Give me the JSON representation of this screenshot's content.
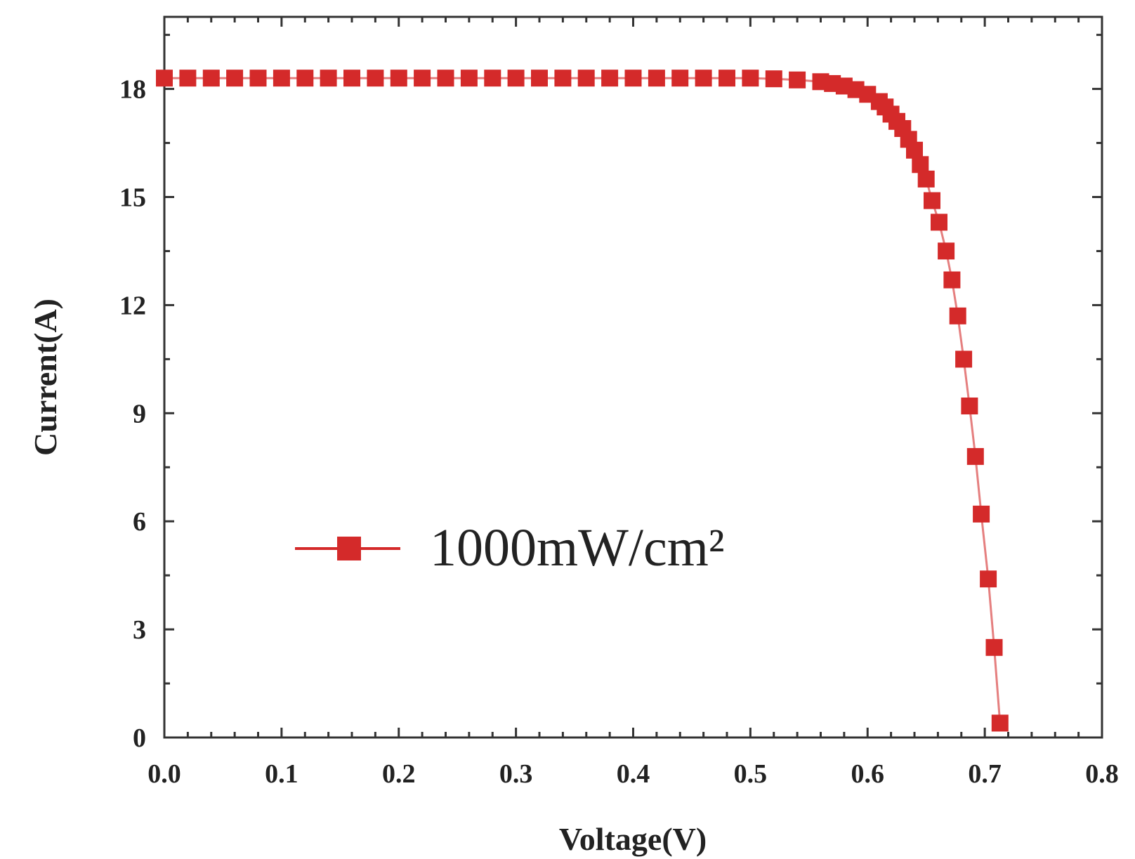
{
  "chart_data": {
    "type": "scatter",
    "title": "",
    "xlabel": "Voltage(V)",
    "ylabel": "Current(A)",
    "xlim": [
      0.0,
      0.8
    ],
    "ylim": [
      0,
      20
    ],
    "x_ticks": [
      0.0,
      0.1,
      0.2,
      0.3,
      0.4,
      0.5,
      0.6,
      0.7,
      0.8
    ],
    "x_tick_labels": [
      "0.0",
      "0.1",
      "0.2",
      "0.3",
      "0.4",
      "0.5",
      "0.6",
      "0.7",
      "0.8"
    ],
    "y_ticks": [
      0,
      3,
      6,
      9,
      12,
      15,
      18
    ],
    "y_tick_labels": [
      "0",
      "3",
      "6",
      "9",
      "12",
      "15",
      "18"
    ],
    "grid": false,
    "legend": {
      "placement": "center-left",
      "entries": [
        "1000mW/cm²"
      ]
    },
    "series": [
      {
        "name": "1000mW/cm²",
        "color": "#d42a2a",
        "marker": "square",
        "x": [
          0.0,
          0.02,
          0.04,
          0.06,
          0.08,
          0.1,
          0.12,
          0.14,
          0.16,
          0.18,
          0.2,
          0.22,
          0.24,
          0.26,
          0.28,
          0.3,
          0.32,
          0.34,
          0.36,
          0.38,
          0.4,
          0.42,
          0.44,
          0.46,
          0.48,
          0.5,
          0.52,
          0.54,
          0.56,
          0.57,
          0.58,
          0.59,
          0.6,
          0.61,
          0.615,
          0.62,
          0.625,
          0.63,
          0.635,
          0.64,
          0.645,
          0.65,
          0.655,
          0.661,
          0.667,
          0.672,
          0.677,
          0.682,
          0.687,
          0.692,
          0.697,
          0.703,
          0.708,
          0.713
        ],
        "y": [
          18.3,
          18.3,
          18.3,
          18.3,
          18.3,
          18.3,
          18.3,
          18.3,
          18.3,
          18.3,
          18.3,
          18.3,
          18.3,
          18.3,
          18.3,
          18.3,
          18.3,
          18.3,
          18.3,
          18.3,
          18.3,
          18.3,
          18.3,
          18.3,
          18.3,
          18.3,
          18.28,
          18.25,
          18.2,
          18.15,
          18.08,
          17.98,
          17.85,
          17.65,
          17.5,
          17.3,
          17.1,
          16.9,
          16.6,
          16.3,
          15.9,
          15.5,
          14.9,
          14.3,
          13.5,
          12.7,
          11.7,
          10.5,
          9.2,
          7.8,
          6.2,
          4.4,
          2.5,
          0.4
        ]
      }
    ]
  }
}
